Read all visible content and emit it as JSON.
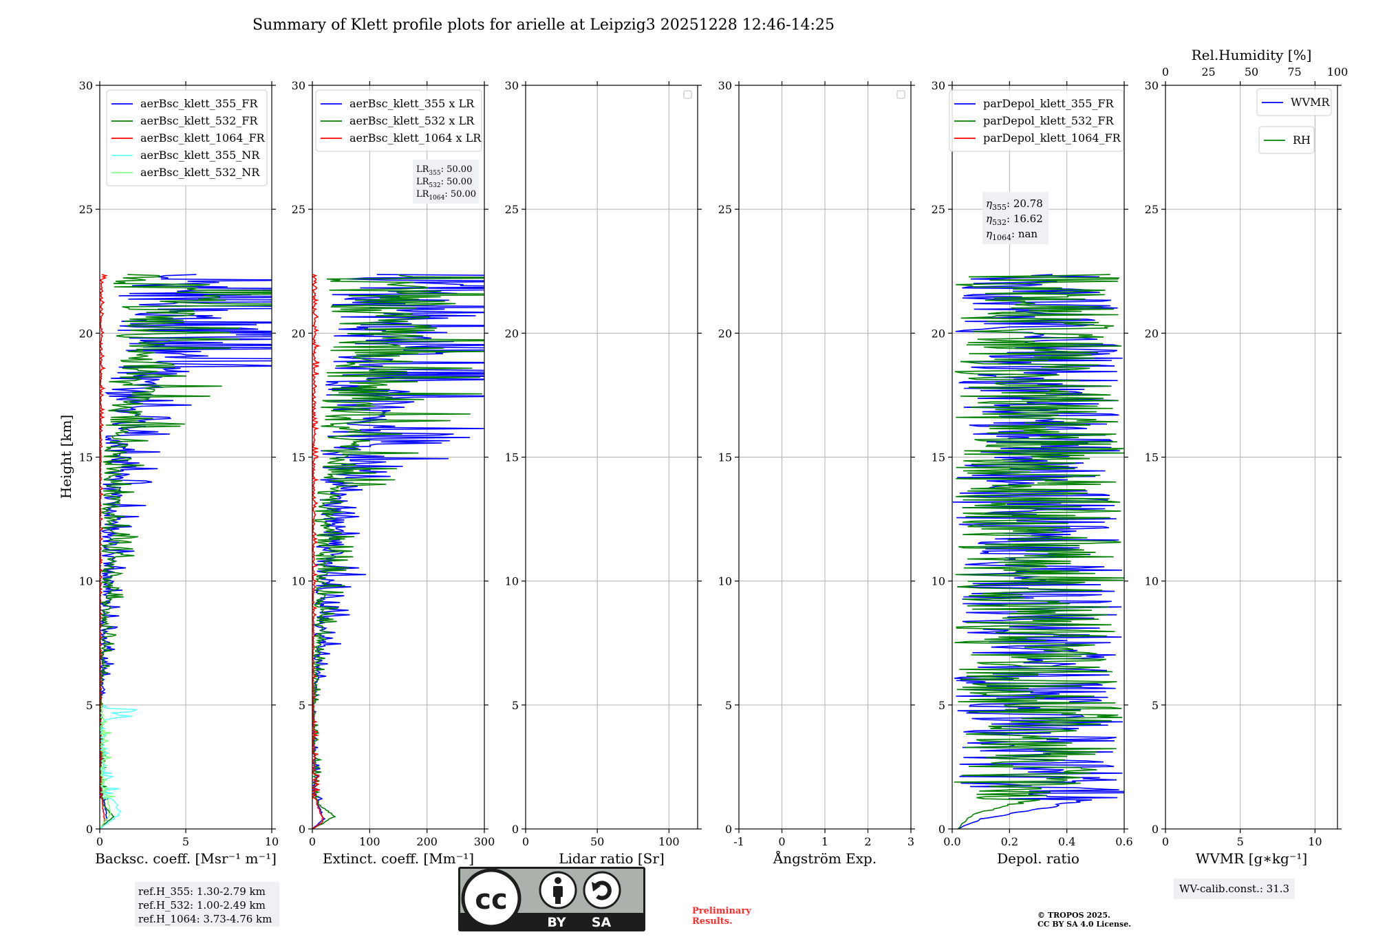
{
  "title": "Summary of Klett profile plots for arielle at Leipzig3 20251228 12:46-14:25",
  "ylabel": "Height [km]",
  "y_ticks": [
    "0",
    "5",
    "10",
    "15",
    "20",
    "25",
    "30"
  ],
  "chart_data": [
    {
      "id": "bsc",
      "type": "line",
      "xlabel": "Backsc. coeff. [Msr⁻¹ m⁻¹]",
      "xlim": [
        0,
        10
      ],
      "ylim": [
        0,
        30
      ],
      "x_ticks": [
        0,
        5,
        10
      ],
      "legend": [
        {
          "label": "aerBsc_klett_355_FR",
          "color": "#0000ff"
        },
        {
          "label": "aerBsc_klett_532_FR",
          "color": "#008000"
        },
        {
          "label": "aerBsc_klett_1064_FR",
          "color": "#ff0000"
        },
        {
          "label": "aerBsc_klett_355_NR",
          "color": "#66ffff"
        },
        {
          "label": "aerBsc_klett_532_NR",
          "color": "#88ff88"
        }
      ],
      "series": [
        {
          "name": "aerBsc_klett_355_FR",
          "color": "#0000ff",
          "signal_top_km": 22.4,
          "points": [
            [
              0,
              0
            ],
            [
              0.4,
              0.4
            ],
            [
              0.3,
              1
            ],
            [
              0.05,
              2
            ],
            [
              0.1,
              5
            ],
            [
              0.4,
              6.5
            ],
            [
              0.6,
              9
            ],
            [
              1.2,
              11
            ],
            [
              1.3,
              12.8
            ],
            [
              1.8,
              13.8
            ],
            [
              2.1,
              15
            ],
            [
              3.7,
              16.8
            ],
            [
              2.6,
              17.4
            ],
            [
              4.5,
              18.2
            ],
            [
              10,
              19
            ],
            [
              9,
              20.4
            ],
            [
              10,
              21.5
            ],
            [
              6.5,
              22.4
            ]
          ]
        },
        {
          "name": "aerBsc_klett_532_FR",
          "color": "#008000",
          "signal_top_km": 22.4,
          "points": [
            [
              0,
              0
            ],
            [
              0.8,
              0.5
            ],
            [
              0.2,
              1
            ],
            [
              0.1,
              5
            ],
            [
              0.5,
              8
            ],
            [
              0.9,
              10
            ],
            [
              1.2,
              12
            ],
            [
              1.5,
              14.5
            ],
            [
              2.2,
              16
            ],
            [
              3.5,
              17.5
            ],
            [
              4,
              19
            ],
            [
              6,
              20.5
            ],
            [
              10,
              21.5
            ],
            [
              5,
              22.3
            ]
          ]
        },
        {
          "name": "aerBsc_klett_1064_FR",
          "color": "#ff0000",
          "signal_top_km": 22.4,
          "points": [
            [
              0,
              0
            ],
            [
              0.3,
              0.3
            ],
            [
              0.15,
              1
            ],
            [
              0.05,
              5
            ],
            [
              0.1,
              15
            ],
            [
              0.2,
              22.3
            ]
          ]
        },
        {
          "name": "aerBsc_klett_355_NR",
          "color": "#66ffff",
          "signal_top_km": 5.0,
          "points": [
            [
              0,
              0
            ],
            [
              1.2,
              0.6
            ],
            [
              0.4,
              2
            ],
            [
              0.2,
              4.2
            ],
            [
              2.0,
              4.6
            ],
            [
              0.3,
              5.0
            ]
          ]
        },
        {
          "name": "aerBsc_klett_532_NR",
          "color": "#88ff88",
          "signal_top_km": 5.0,
          "points": [
            [
              0,
              0
            ],
            [
              0.6,
              0.6
            ],
            [
              0.3,
              2
            ],
            [
              0.4,
              4
            ],
            [
              0.2,
              5.0
            ]
          ]
        }
      ],
      "info_box": {
        "lines": [
          "ref.H_355: 1.30-2.79 km",
          "ref.H_532: 1.00-2.49 km",
          "ref.H_1064: 3.73-4.76 km"
        ]
      }
    },
    {
      "id": "ext",
      "type": "line",
      "xlabel": "Extinct. coeff. [Mm⁻¹]",
      "xlim": [
        0,
        300
      ],
      "ylim": [
        0,
        30
      ],
      "x_ticks": [
        0,
        100,
        200,
        300
      ],
      "legend": [
        {
          "label": "aerBsc_klett_355 x LR",
          "color": "#0000ff"
        },
        {
          "label": "aerBsc_klett_532 x LR",
          "color": "#008000"
        },
        {
          "label": "aerBsc_klett_1064 x LR",
          "color": "#ff0000"
        }
      ],
      "series": [
        {
          "name": "aerBsc_klett_355 x LR",
          "color": "#0000ff",
          "signal_top_km": 22.4,
          "points": [
            [
              0,
              0
            ],
            [
              20,
              0.4
            ],
            [
              10,
              1
            ],
            [
              3,
              5
            ],
            [
              40,
              9
            ],
            [
              60,
              11
            ],
            [
              70,
              13
            ],
            [
              180,
              16.8
            ],
            [
              220,
              18.3
            ],
            [
              300,
              19
            ],
            [
              280,
              21
            ],
            [
              300,
              22.4
            ]
          ]
        },
        {
          "name": "aerBsc_klett_532 x LR",
          "color": "#008000",
          "signal_top_km": 22.4,
          "points": [
            [
              0,
              0
            ],
            [
              40,
              0.5
            ],
            [
              10,
              1
            ],
            [
              5,
              5
            ],
            [
              30,
              10
            ],
            [
              50,
              13
            ],
            [
              120,
              16
            ],
            [
              200,
              19
            ],
            [
              300,
              21.5
            ],
            [
              230,
              22.3
            ]
          ]
        },
        {
          "name": "aerBsc_klett_1064 x LR",
          "color": "#ff0000",
          "signal_top_km": 22.4,
          "points": [
            [
              0,
              0
            ],
            [
              20,
              0.3
            ],
            [
              8,
              1
            ],
            [
              3,
              5
            ],
            [
              5,
              15
            ],
            [
              8,
              22.3
            ]
          ]
        }
      ],
      "info_box": {
        "lines": [
          {
            "base": "LR",
            "sub": "355",
            "value": ": 50.00"
          },
          {
            "base": "LR",
            "sub": "532",
            "value": ": 50.00"
          },
          {
            "base": "LR",
            "sub": "1064",
            "value": ": 50.00"
          }
        ]
      }
    },
    {
      "id": "lr",
      "type": "line",
      "xlabel": "Lidar ratio [Sr]",
      "xlim": [
        0,
        120
      ],
      "ylim": [
        0,
        30
      ],
      "x_ticks": [
        0,
        50,
        100
      ],
      "series": [],
      "empty_legend": true
    },
    {
      "id": "ang",
      "type": "line",
      "xlabel": "Ångström Exp.",
      "xlim": [
        -1,
        3
      ],
      "ylim": [
        0,
        30
      ],
      "x_ticks": [
        -1,
        0,
        1,
        2,
        3
      ],
      "series": [],
      "empty_legend": true
    },
    {
      "id": "dep",
      "type": "line",
      "xlabel": "Depol. ratio",
      "xlim": [
        0,
        0.6
      ],
      "ylim": [
        0,
        30
      ],
      "x_ticks": [
        0.0,
        0.2,
        0.4,
        0.6
      ],
      "legend": [
        {
          "label": "parDepol_klett_355_FR",
          "color": "#0000ff"
        },
        {
          "label": "parDepol_klett_532_FR",
          "color": "#008000"
        },
        {
          "label": "parDepol_klett_1064_FR",
          "color": "#ff0000"
        }
      ],
      "series": [
        {
          "name": "parDepol_klett_355_FR",
          "color": "#0000ff",
          "signal_top_km": 22.4,
          "points": [
            [
              0.02,
              0
            ],
            [
              0.1,
              0.4
            ],
            [
              0.3,
              0.8
            ],
            [
              0.6,
              1.5
            ],
            [
              0.6,
              22.4
            ]
          ]
        },
        {
          "name": "parDepol_klett_532_FR",
          "color": "#008000",
          "signal_top_km": 22.4,
          "points": [
            [
              0.02,
              0
            ],
            [
              0.07,
              0.6
            ],
            [
              0.4,
              1.5
            ],
            [
              0.6,
              5
            ],
            [
              0.6,
              22.4
            ]
          ]
        }
      ],
      "info_box": {
        "lines": [
          {
            "base": "η",
            "sub": "355",
            "value": ": 20.78"
          },
          {
            "base": "η",
            "sub": "532",
            "value": ": 16.62"
          },
          {
            "base": "η",
            "sub": "1064",
            "value": ": nan"
          }
        ]
      }
    },
    {
      "id": "wv",
      "type": "line",
      "xlabel": "WVMR [g∗kg⁻¹]",
      "xlim": [
        0,
        11.5
      ],
      "ylim": [
        0,
        30
      ],
      "x_ticks": [
        0,
        5,
        10
      ],
      "top_axis": {
        "label": "Rel.Humidity [%]",
        "xlim": [
          0,
          100
        ],
        "ticks": [
          0,
          25,
          50,
          75,
          100
        ]
      },
      "legend": [
        {
          "label": "WVMR",
          "color": "#0000ff"
        }
      ],
      "legend2": [
        {
          "label": "RH",
          "color": "#008000"
        }
      ],
      "series": [],
      "info_box": {
        "lines": [
          "WV-calib.const.: 31.3"
        ]
      }
    }
  ],
  "footer": {
    "license_badge": {
      "by": "BY",
      "sa": "SA",
      "cc": "cc"
    },
    "preliminary": [
      "Preliminary",
      "Results."
    ],
    "copyright": [
      "© TROPOS 2025.",
      "CC BY SA 4.0 License."
    ]
  },
  "colors": {
    "blue": "#0000ff",
    "green": "#008000",
    "red": "#ff0000",
    "cyan": "#66ffff",
    "lightgreen": "#88ff88",
    "grid": "#b0b0b0",
    "infobox": "#eef0f4"
  }
}
